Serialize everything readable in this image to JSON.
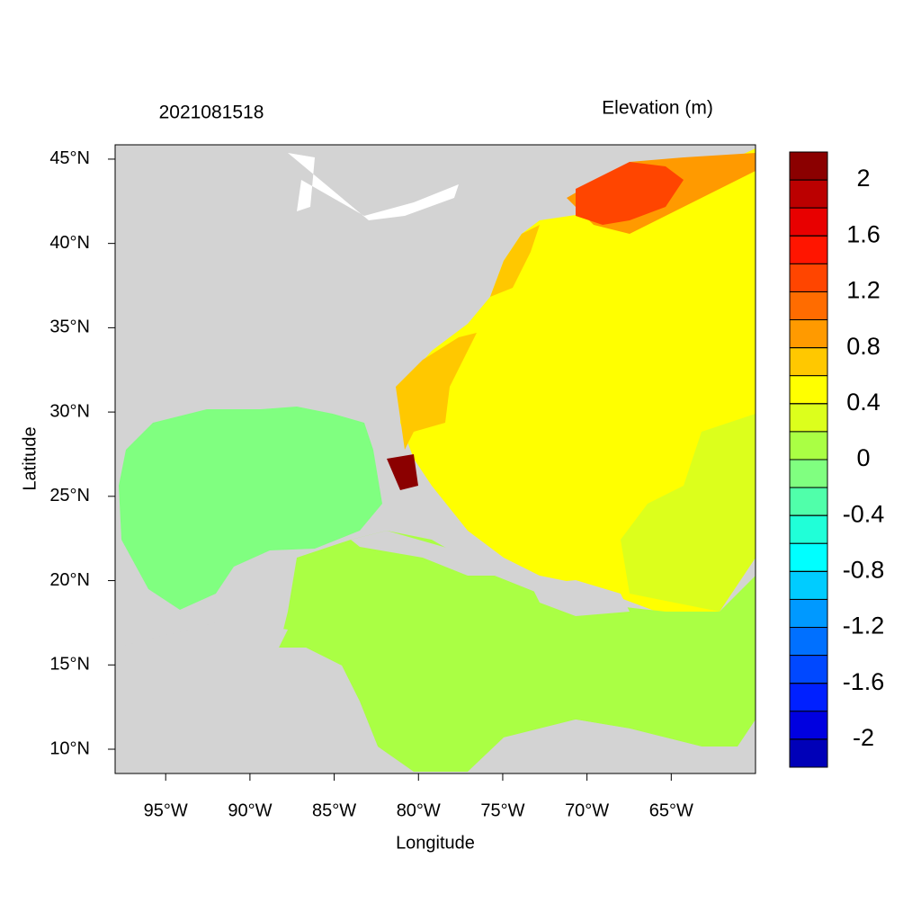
{
  "title_left": "2021081518",
  "title_right": "Elevation (m)",
  "map": {
    "xlabel": "Longitude",
    "ylabel": "Latitude",
    "lonlim": [
      -98,
      -60
    ],
    "latlim": [
      8.56,
      45.85
    ],
    "lonticks": [
      {
        "value": -95,
        "label": "95°W"
      },
      {
        "value": -90,
        "label": "90°W"
      },
      {
        "value": -85,
        "label": "85°W"
      },
      {
        "value": -80,
        "label": "80°W"
      },
      {
        "value": -75,
        "label": "75°W"
      },
      {
        "value": -70,
        "label": "70°W"
      },
      {
        "value": -65,
        "label": "65°W"
      }
    ],
    "latticks": [
      {
        "value": 10,
        "label": "10°N"
      },
      {
        "value": 15,
        "label": "15°N"
      },
      {
        "value": 20,
        "label": "20°N"
      },
      {
        "value": 25,
        "label": "25°N"
      },
      {
        "value": 30,
        "label": "30°N"
      },
      {
        "value": 35,
        "label": "35°N"
      },
      {
        "value": 40,
        "label": "40°N"
      },
      {
        "value": 45,
        "label": "45°N"
      }
    ]
  },
  "colorbar": {
    "lim": [
      -2.2,
      2.2
    ],
    "ticks": [
      2,
      1.6,
      1.2,
      0.8,
      0.4,
      0,
      -0.4,
      -0.8,
      -1.2,
      -1.6,
      -2
    ],
    "colors": [
      "#8b0000",
      "#bb0000",
      "#e80000",
      "#ff1500",
      "#ff4500",
      "#ff6c00",
      "#ff9a00",
      "#ffc800",
      "#ffff00",
      "#dcff1c",
      "#aaff44",
      "#80ff80",
      "#50ffaa",
      "#20ffd8",
      "#00ffff",
      "#00ccff",
      "#0099ff",
      "#0070ff",
      "#0048ff",
      "#0020ff",
      "#0000e0",
      "#0000b8"
    ]
  }
}
